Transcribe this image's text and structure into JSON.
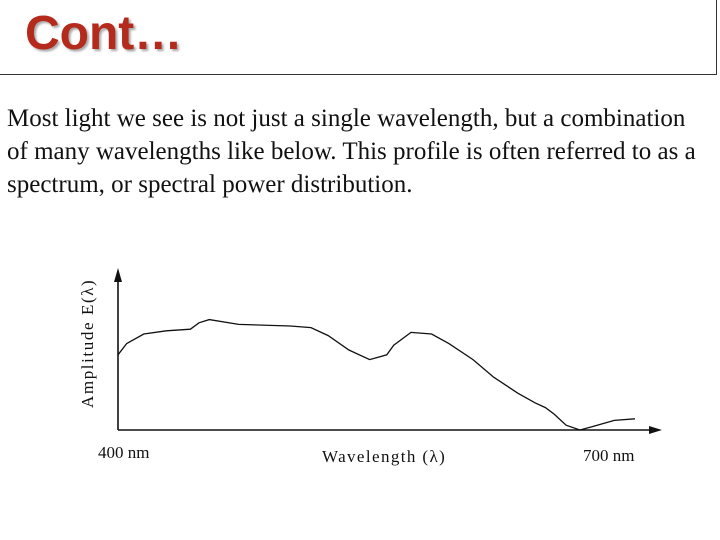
{
  "slide": {
    "title": "Cont…",
    "body": "Most light we see is not just a single wavelength, but a combination of many wavelengths like below. This profile is often referred to as a spectrum, or spectral power distribution."
  },
  "chart_data": {
    "type": "line",
    "title": "",
    "xlabel": "Wavelength (λ)",
    "ylabel": "Amplitude E(λ)",
    "x_tick_labels": [
      "400 nm",
      "700 nm"
    ],
    "xlim": [
      400,
      700
    ],
    "ylim": [
      0,
      1
    ],
    "grid": false,
    "series": [
      {
        "x": [
          400,
          405,
          415,
          428,
          442,
          447,
          453,
          470,
          500,
          512,
          522,
          534,
          546,
          556,
          560,
          570,
          582,
          592,
          606,
          618,
          625,
          632,
          642,
          648,
          653,
          660,
          668,
          675,
          688,
          700
        ],
        "y": [
          0.47,
          0.54,
          0.6,
          0.62,
          0.63,
          0.67,
          0.69,
          0.66,
          0.65,
          0.64,
          0.59,
          0.5,
          0.44,
          0.47,
          0.53,
          0.61,
          0.6,
          0.54,
          0.44,
          0.33,
          0.28,
          0.23,
          0.17,
          0.14,
          0.1,
          0.03,
          0.0,
          0.02,
          0.06,
          0.07
        ]
      }
    ]
  }
}
